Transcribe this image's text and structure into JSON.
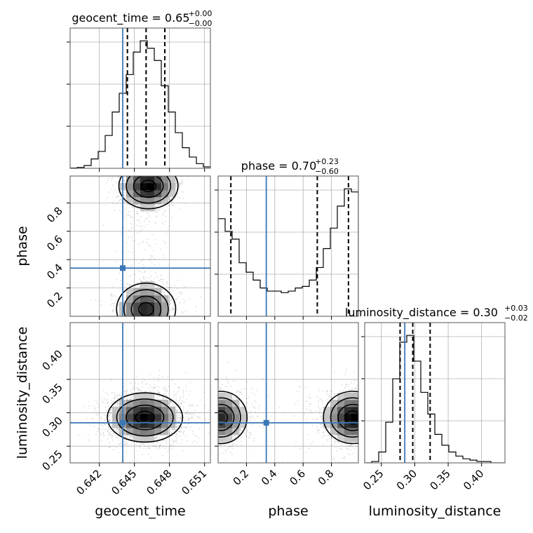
{
  "chart_data": {
    "type": "corner",
    "truth_color": "#3a78b6",
    "parameters": [
      {
        "name": "geocent_time",
        "range": [
          0.6395,
          0.6515
        ],
        "ticks": [
          0.642,
          0.645,
          0.648,
          0.651
        ],
        "tick_labels": [
          "0.642",
          "0.645",
          "0.648",
          "0.651"
        ],
        "truth": 0.644,
        "title": {
          "main": "geocent_time = 0.65",
          "sup": "+0.00",
          "sub": "−0.00"
        },
        "quantiles": [
          0.6444,
          0.646,
          0.6476
        ]
      },
      {
        "name": "phase",
        "range": [
          0.0,
          0.99
        ],
        "ticks": [
          0.2,
          0.4,
          0.6,
          0.8
        ],
        "tick_labels": [
          "0.2",
          "0.4",
          "0.6",
          "0.8"
        ],
        "truth": 0.34,
        "title": {
          "main": "phase = 0.70",
          "sup": "+0.23",
          "sub": "−0.60"
        },
        "quantiles": [
          0.09,
          0.7,
          0.92
        ]
      },
      {
        "name": "luminosity_distance",
        "range": [
          0.225,
          0.435
        ],
        "ticks": [
          0.25,
          0.3,
          0.35,
          0.4
        ],
        "tick_labels": [
          "0.25",
          "0.30",
          "0.35",
          "0.40"
        ],
        "truth": 0.285,
        "title": {
          "main": "luminosity_distance = 0.30",
          "sup": "+0.03",
          "sub": "−0.02"
        },
        "quantiles": [
          0.278,
          0.297,
          0.323
        ]
      }
    ],
    "hist1d": [
      {
        "param": "geocent_time",
        "edges": [
          0.6395,
          0.6401,
          0.6407,
          0.6413,
          0.6419,
          0.6425,
          0.6431,
          0.6437,
          0.6443,
          0.6449,
          0.6455,
          0.6461,
          0.6467,
          0.6473,
          0.6479,
          0.6485,
          0.6491,
          0.6497,
          0.6503,
          0.6509,
          0.6515
        ],
        "counts": [
          0.3,
          1.0,
          3.0,
          10,
          18,
          35,
          60,
          80,
          100,
          124,
          136,
          128,
          115,
          88,
          60,
          38,
          22,
          12,
          5,
          1.5
        ]
      },
      {
        "param": "phase",
        "edges": [
          0.0,
          0.0495,
          0.099,
          0.1485,
          0.198,
          0.2475,
          0.297,
          0.3465,
          0.396,
          0.4455,
          0.495,
          0.5445,
          0.594,
          0.6435,
          0.693,
          0.7425,
          0.792,
          0.8415,
          0.891,
          0.9405,
          0.99
        ],
        "counts": [
          62,
          54,
          49,
          34,
          28,
          23,
          18,
          16,
          16,
          15,
          16,
          18,
          19,
          23,
          31,
          43,
          56,
          70,
          81,
          79
        ]
      },
      {
        "param": "luminosity_distance",
        "edges": [
          0.225,
          0.2355,
          0.246,
          0.2565,
          0.267,
          0.2775,
          0.288,
          0.2985,
          0.309,
          0.3195,
          0.33,
          0.3405,
          0.351,
          0.3615,
          0.372,
          0.3825,
          0.393,
          0.4035,
          0.414,
          0.4245,
          0.435
        ],
        "counts": [
          0,
          1,
          8,
          30,
          62,
          89,
          94,
          75,
          52,
          36,
          21,
          13,
          8,
          5,
          3,
          2,
          1,
          1,
          0,
          0
        ]
      }
    ],
    "hist2d": [
      {
        "x": "geocent_time",
        "y": "phase",
        "blobs": [
          {
            "x": 0.6462,
            "y": 0.92,
            "sx": 0.0011,
            "sy": 0.07,
            "w": 1.0
          },
          {
            "x": 0.646,
            "y": 0.05,
            "sx": 0.0011,
            "sy": 0.08,
            "w": 0.85
          },
          {
            "x": 0.6458,
            "y": 0.5,
            "sx": 0.001,
            "sy": 0.22,
            "w": 0.12
          }
        ]
      },
      {
        "x": "geocent_time",
        "y": "luminosity_distance",
        "blobs": [
          {
            "x": 0.6459,
            "y": 0.293,
            "sx": 0.0014,
            "sy": 0.016,
            "w": 1.0
          }
        ]
      },
      {
        "x": "phase",
        "y": "luminosity_distance",
        "blobs": [
          {
            "x": 0.95,
            "y": 0.293,
            "sx": 0.09,
            "sy": 0.017,
            "w": 1.0
          },
          {
            "x": 0.02,
            "y": 0.293,
            "sx": 0.08,
            "sy": 0.017,
            "w": 0.8
          },
          {
            "x": 0.5,
            "y": 0.3,
            "sx": 0.3,
            "sy": 0.025,
            "w": 0.05
          }
        ]
      }
    ]
  }
}
